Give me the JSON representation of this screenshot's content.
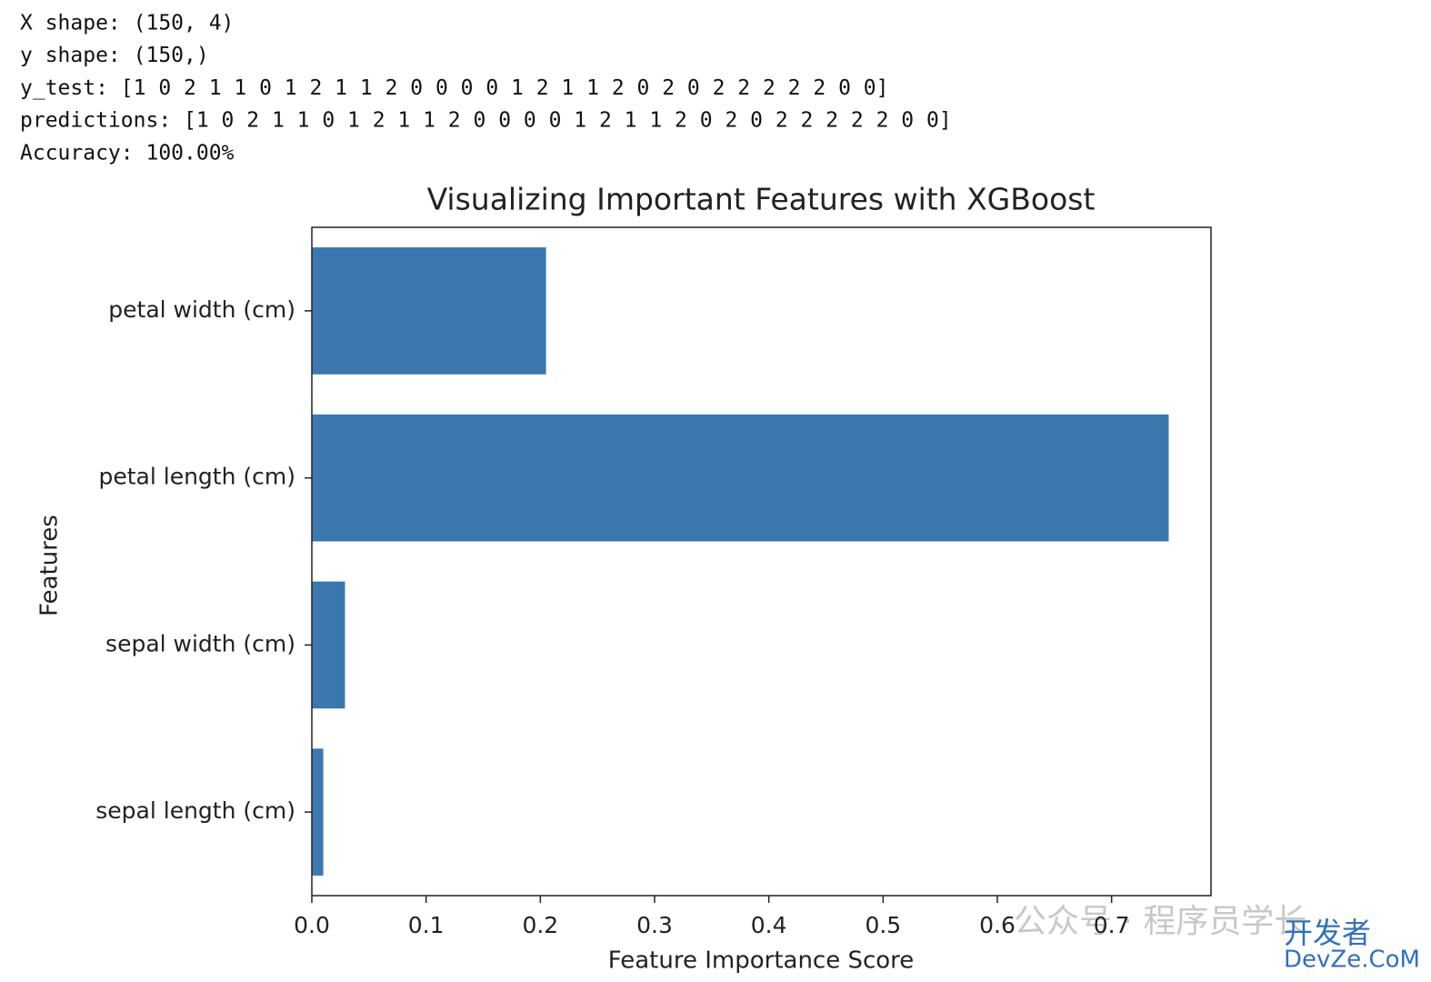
{
  "output_lines": [
    "X shape: (150, 4)",
    "y shape: (150,)",
    "y_test: [1 0 2 1 1 0 1 2 1 1 2 0 0 0 0 1 2 1 1 2 0 2 0 2 2 2 2 2 0 0]",
    "predictions: [1 0 2 1 1 0 1 2 1 1 2 0 0 0 0 1 2 1 1 2 0 2 0 2 2 2 2 2 0 0]",
    "Accuracy: 100.00%"
  ],
  "chart_data": {
    "type": "barh",
    "title": "Visualizing Important Features with XGBoost",
    "x_label": "Feature Importance Score",
    "y_label": "Features",
    "categories": [
      "sepal length (cm)",
      "sepal width (cm)",
      "petal length (cm)",
      "petal width (cm)"
    ],
    "values": [
      0.01,
      0.029,
      0.75,
      0.205
    ],
    "color": "#3a78af",
    "xlim": [
      0,
      0.787
    ],
    "xticks": [
      {
        "value": 0,
        "label": "0.0"
      },
      0.1,
      0.2,
      0.3,
      0.4,
      0.5,
      0.6,
      0.7
    ]
  },
  "watermark": {
    "account": "公众号 · 程序员学长",
    "site_cn": "开发者",
    "site": "DevZe.CoM"
  }
}
